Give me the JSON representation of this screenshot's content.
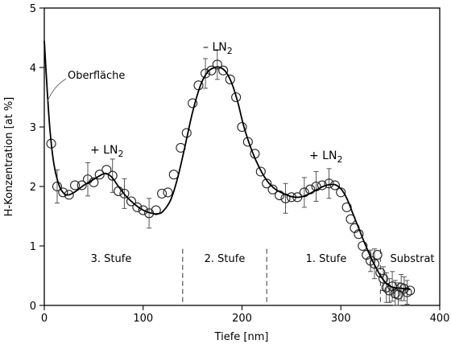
{
  "chart_data": {
    "type": "scatter",
    "xlabel": "Tiefe [nm]",
    "ylabel": "H-Konzentration [at %]",
    "xlim": [
      0,
      400
    ],
    "ylim": [
      0,
      5
    ],
    "x_ticks": [
      0,
      100,
      200,
      300,
      400
    ],
    "y_ticks": [
      0,
      1,
      2,
      3,
      4,
      5
    ],
    "grid": false,
    "legend": "none",
    "annotations": {
      "oberflaeche": "Oberfläche",
      "peak1_prefix": "+ LN",
      "peak1_sub": "2",
      "peak2_prefix": "– LN",
      "peak2_sub": "2",
      "peak3_prefix": "+ LN",
      "peak3_sub": "2",
      "stufe3": "3. Stufe",
      "stufe2": "2. Stufe",
      "stufe1": "1. Stufe",
      "substrat": "Substrat"
    },
    "dividers_x": [
      140,
      225,
      340
    ],
    "series": [
      {
        "kind": "measured",
        "x": [
          7,
          13,
          19,
          25,
          31,
          38,
          44,
          50,
          56,
          63,
          69,
          75,
          81,
          88,
          94,
          100,
          106,
          113,
          119,
          125,
          131,
          138,
          144,
          150,
          156,
          163,
          169,
          175,
          181,
          188,
          194,
          200,
          206,
          213,
          219,
          225,
          231,
          238,
          244,
          250,
          256,
          263,
          269,
          275,
          281,
          288,
          294,
          300,
          306,
          310,
          314,
          318,
          322,
          326,
          330,
          334,
          337,
          340,
          343,
          346,
          349,
          352,
          355,
          358,
          361,
          364,
          367,
          370
        ],
        "y": [
          2.72,
          2.0,
          1.9,
          1.86,
          2.02,
          2.02,
          2.12,
          2.07,
          2.2,
          2.28,
          2.18,
          1.92,
          1.88,
          1.75,
          1.65,
          1.6,
          1.55,
          1.6,
          1.88,
          1.9,
          2.2,
          2.65,
          2.9,
          3.4,
          3.7,
          3.9,
          3.95,
          4.05,
          3.95,
          3.8,
          3.5,
          3.0,
          2.75,
          2.55,
          2.25,
          2.05,
          1.95,
          1.85,
          1.8,
          1.82,
          1.82,
          1.9,
          1.95,
          2.0,
          2.02,
          2.05,
          2.02,
          1.9,
          1.65,
          1.45,
          1.3,
          1.2,
          1.0,
          0.85,
          0.75,
          0.7,
          0.85,
          0.55,
          0.45,
          0.3,
          0.25,
          0.32,
          0.2,
          0.18,
          0.3,
          0.28,
          0.22,
          0.25
        ],
        "err": [
          0.0,
          0.28,
          0.0,
          0.0,
          0.0,
          0.0,
          0.28,
          0.0,
          0.0,
          0.0,
          0.28,
          0.0,
          0.25,
          0.0,
          0.0,
          0.0,
          0.25,
          0.0,
          0.0,
          0.0,
          0.0,
          0.0,
          0.0,
          0.0,
          0.0,
          0.25,
          0.0,
          0.25,
          0.0,
          0.0,
          0.0,
          0.0,
          0.0,
          0.0,
          0.0,
          0.0,
          0.0,
          0.0,
          0.25,
          0.0,
          0.0,
          0.25,
          0.0,
          0.25,
          0.0,
          0.25,
          0.0,
          0.0,
          0.0,
          0.0,
          0.0,
          0.0,
          0.0,
          0.0,
          0.18,
          0.25,
          0.0,
          0.0,
          0.2,
          0.25,
          0.2,
          0.25,
          0.22,
          0.2,
          0.22,
          0.2,
          0.2,
          0.0
        ]
      },
      {
        "kind": "fit",
        "x": [
          0,
          3,
          6,
          10,
          15,
          20,
          25,
          32,
          40,
          48,
          56,
          62,
          68,
          75,
          82,
          90,
          98,
          106,
          114,
          120,
          128,
          135,
          142,
          150,
          158,
          165,
          172,
          178,
          184,
          190,
          196,
          202,
          210,
          218,
          226,
          234,
          242,
          250,
          258,
          266,
          274,
          282,
          288,
          294,
          300,
          306,
          312,
          318,
          324,
          330,
          336,
          342,
          348,
          354,
          360,
          365,
          370
        ],
        "y": [
          4.45,
          3.6,
          2.9,
          2.35,
          2.02,
          1.88,
          1.86,
          1.92,
          2.02,
          2.1,
          2.18,
          2.22,
          2.16,
          2.0,
          1.85,
          1.72,
          1.62,
          1.56,
          1.54,
          1.58,
          1.78,
          2.15,
          2.65,
          3.25,
          3.7,
          3.92,
          4.0,
          4.0,
          3.92,
          3.72,
          3.4,
          3.0,
          2.6,
          2.3,
          2.08,
          1.95,
          1.88,
          1.83,
          1.82,
          1.86,
          1.93,
          2.0,
          2.03,
          2.03,
          1.96,
          1.8,
          1.55,
          1.3,
          1.05,
          0.82,
          0.62,
          0.45,
          0.34,
          0.3,
          0.29,
          0.28,
          0.27
        ]
      }
    ]
  }
}
